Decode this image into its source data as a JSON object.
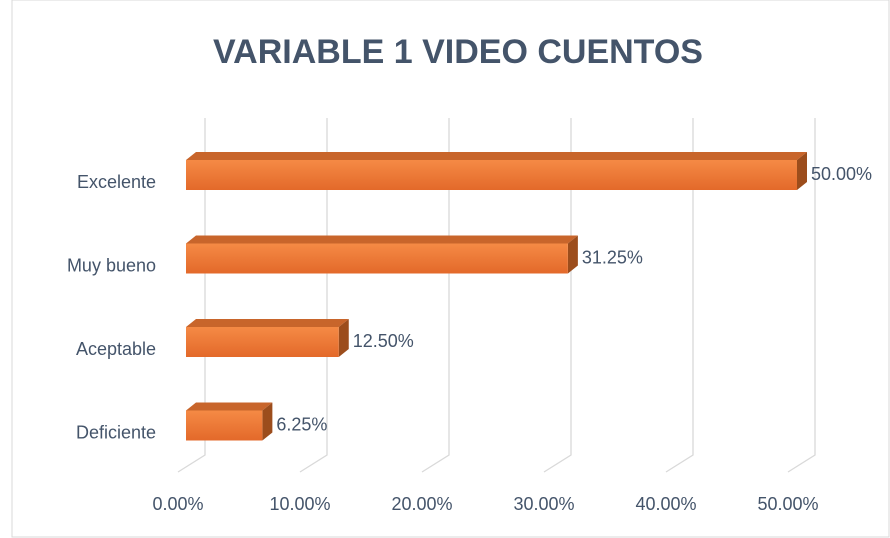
{
  "chart_data": {
    "type": "bar",
    "orientation": "horizontal",
    "title": "VARIABLE 1 VIDEO CUENTOS",
    "categories": [
      "Excelente",
      "Muy bueno",
      "Aceptable",
      "Deficiente"
    ],
    "values": [
      50,
      31.25,
      12.5,
      6.25
    ],
    "value_labels": [
      "50.00%",
      "31.25%",
      "12.50%",
      "6.25%"
    ],
    "color": "#ed7d31",
    "xlim": [
      0,
      50
    ],
    "xticks": [
      {
        "value": 0,
        "label": "0.00%"
      },
      {
        "value": 10,
        "label": "10.00%"
      },
      {
        "value": 20,
        "label": "20.00%"
      },
      {
        "value": 30,
        "label": "30.00%"
      },
      {
        "value": 40,
        "label": "40.00%"
      },
      {
        "value": 50,
        "label": "50.00%"
      }
    ],
    "grid": true
  }
}
